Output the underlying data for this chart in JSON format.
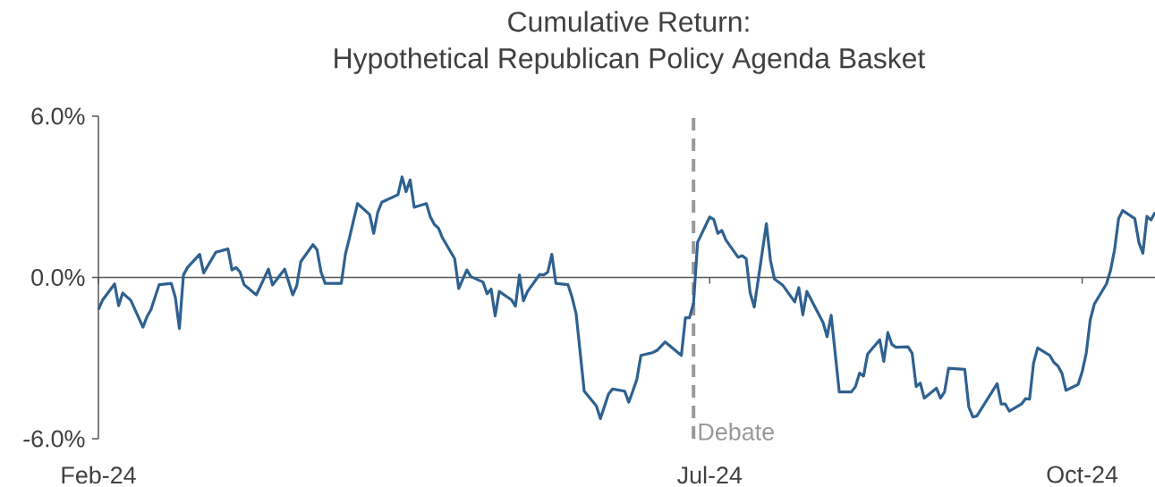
{
  "chart_data": {
    "type": "line",
    "title": "Cumulative Return:",
    "subtitle": "Hypothetical Republican Policy Agenda Basket",
    "x": [
      "2024-02-01",
      "2024-02-02",
      "2024-02-05",
      "2024-02-06",
      "2024-02-07",
      "2024-02-09",
      "2024-02-12",
      "2024-02-13",
      "2024-02-14",
      "2024-02-16",
      "2024-02-19",
      "2024-02-20",
      "2024-02-21",
      "2024-02-22",
      "2024-02-23",
      "2024-02-26",
      "2024-02-27",
      "2024-03-01",
      "2024-03-04",
      "2024-03-05",
      "2024-03-06",
      "2024-03-07",
      "2024-03-08",
      "2024-03-11",
      "2024-03-14",
      "2024-03-15",
      "2024-03-18",
      "2024-03-20",
      "2024-03-21",
      "2024-03-22",
      "2024-03-25",
      "2024-03-26",
      "2024-03-27",
      "2024-03-28",
      "2024-04-01",
      "2024-04-02",
      "2024-04-03",
      "2024-04-05",
      "2024-04-08",
      "2024-04-09",
      "2024-04-10",
      "2024-04-11",
      "2024-04-15",
      "2024-04-16",
      "2024-04-17",
      "2024-04-18",
      "2024-04-19",
      "2024-04-22",
      "2024-04-23",
      "2024-04-24",
      "2024-04-25",
      "2024-04-26",
      "2024-04-29",
      "2024-04-30",
      "2024-05-02",
      "2024-05-03",
      "2024-05-06",
      "2024-05-07",
      "2024-05-08",
      "2024-05-09",
      "2024-05-10",
      "2024-05-13",
      "2024-05-14",
      "2024-05-15",
      "2024-05-16",
      "2024-05-17",
      "2024-05-20",
      "2024-05-21",
      "2024-05-22",
      "2024-05-23",
      "2024-05-24",
      "2024-05-27",
      "2024-05-28",
      "2024-05-29",
      "2024-05-31",
      "2024-06-03",
      "2024-06-04",
      "2024-06-06",
      "2024-06-07",
      "2024-06-10",
      "2024-06-11",
      "2024-06-12",
      "2024-06-13",
      "2024-06-14",
      "2024-06-17",
      "2024-06-18",
      "2024-06-20",
      "2024-06-24",
      "2024-06-25",
      "2024-06-26",
      "2024-06-27",
      "2024-06-28",
      "2024-07-01",
      "2024-07-02",
      "2024-07-03",
      "2024-07-04",
      "2024-07-05",
      "2024-07-08",
      "2024-07-09",
      "2024-07-10",
      "2024-07-11",
      "2024-07-12",
      "2024-07-15",
      "2024-07-16",
      "2024-07-17",
      "2024-07-19",
      "2024-07-22",
      "2024-07-23",
      "2024-07-24",
      "2024-07-25",
      "2024-07-29",
      "2024-07-30",
      "2024-07-31",
      "2024-08-02",
      "2024-08-05",
      "2024-08-06",
      "2024-08-07",
      "2024-08-08",
      "2024-08-09",
      "2024-08-12",
      "2024-08-13",
      "2024-08-14",
      "2024-08-15",
      "2024-08-16",
      "2024-08-19",
      "2024-08-20",
      "2024-08-21",
      "2024-08-22",
      "2024-08-23",
      "2024-08-26",
      "2024-08-27",
      "2024-08-28",
      "2024-08-29",
      "2024-09-02",
      "2024-09-03",
      "2024-09-04",
      "2024-09-05",
      "2024-09-10",
      "2024-09-11",
      "2024-09-12",
      "2024-09-13",
      "2024-09-16",
      "2024-09-17",
      "2024-09-18",
      "2024-09-19",
      "2024-09-20",
      "2024-09-23",
      "2024-09-24",
      "2024-09-25",
      "2024-09-26",
      "2024-09-27",
      "2024-09-30",
      "2024-10-01",
      "2024-10-02",
      "2024-10-03",
      "2024-10-04",
      "2024-10-07",
      "2024-10-08",
      "2024-10-09",
      "2024-10-10",
      "2024-10-11",
      "2024-10-14",
      "2024-10-15",
      "2024-10-16",
      "2024-10-17",
      "2024-10-18",
      "2024-10-19"
    ],
    "series": [
      {
        "color": "#2e6190",
        "values": [
          -1.19,
          -0.85,
          -0.24,
          -1.05,
          -0.58,
          -0.85,
          -1.85,
          -1.46,
          -1.19,
          -0.27,
          -0.22,
          -0.74,
          -1.9,
          0.09,
          0.37,
          0.86,
          0.17,
          0.94,
          1.06,
          0.28,
          0.37,
          0.2,
          -0.27,
          -0.65,
          0.31,
          -0.28,
          0.31,
          -0.65,
          -0.3,
          0.59,
          1.22,
          1.03,
          0.2,
          -0.22,
          -0.22,
          0.86,
          1.47,
          2.75,
          2.34,
          1.64,
          2.42,
          2.8,
          3.08,
          3.74,
          3.19,
          3.63,
          2.61,
          2.75,
          2.25,
          1.97,
          1.83,
          1.47,
          0.7,
          -0.41,
          0.28,
          0.03,
          -0.17,
          -0.61,
          -0.43,
          -1.43,
          -0.52,
          -0.83,
          -1.07,
          0.09,
          -0.87,
          -0.52,
          0.11,
          0.09,
          0.2,
          0.86,
          -0.22,
          -0.27,
          -0.74,
          -1.35,
          -4.23,
          -4.78,
          -5.25,
          -4.34,
          -4.15,
          -4.23,
          -4.64,
          -4.23,
          -3.79,
          -2.9,
          -2.79,
          -2.71,
          -2.4,
          -2.9,
          -1.5,
          -1.5,
          -0.96,
          1.31,
          2.25,
          2.16,
          1.64,
          1.75,
          1.39,
          0.75,
          0.81,
          0.7,
          -0.58,
          -1.1,
          2.0,
          0.64,
          -0.06,
          -0.28,
          -0.91,
          -0.38,
          -1.39,
          -0.52,
          -1.68,
          -2.2,
          -1.41,
          -4.26,
          -4.26,
          -4.06,
          -3.56,
          -3.67,
          -2.85,
          -2.32,
          -3.12,
          -2.05,
          -2.49,
          -2.6,
          -2.58,
          -2.82,
          -4.06,
          -3.93,
          -4.49,
          -4.12,
          -4.49,
          -4.26,
          -3.38,
          -3.42,
          -4.82,
          -5.19,
          -5.15,
          -3.95,
          -4.71,
          -4.71,
          -4.97,
          -4.71,
          -4.51,
          -4.53,
          -3.18,
          -2.62,
          -2.9,
          -3.16,
          -3.29,
          -3.56,
          -4.2,
          -3.98,
          -3.51,
          -2.82,
          -1.57,
          -0.99,
          -0.24,
          0.26,
          1.03,
          2.19,
          2.49,
          2.19,
          1.31,
          0.9,
          2.27,
          2.14,
          2.42
        ]
      }
    ],
    "xlim": [
      "2024-02-01",
      "2024-10-19"
    ],
    "ylim": [
      -6,
      6
    ],
    "xticks": [
      {
        "value": "2024-02-01",
        "label": "Feb-24"
      },
      {
        "value": "2024-07-01",
        "label": "Jul-24"
      },
      {
        "value": "2024-10-01",
        "label": "Oct-24"
      }
    ],
    "yticks": [
      {
        "value": -6,
        "label": "-6.0%"
      },
      {
        "value": 0,
        "label": "0.0%"
      },
      {
        "value": 6,
        "label": "6.0%"
      }
    ],
    "ref_lines": [
      {
        "axis": "x",
        "value": "2024-06-27",
        "label": "Debate",
        "color": "#999999",
        "line_style": "dashed"
      }
    ]
  }
}
